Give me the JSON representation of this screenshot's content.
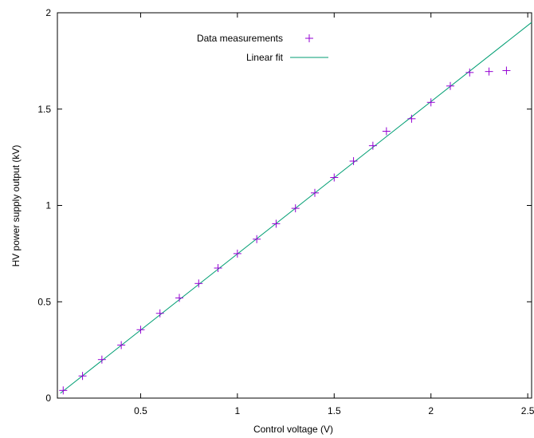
{
  "chart_data": {
    "type": "scatter",
    "title": "",
    "xlabel": "Control voltage (V)",
    "ylabel": "HV power supply output (kV)",
    "xlim": [
      0.07,
      2.52
    ],
    "ylim": [
      0,
      2
    ],
    "x_ticks": [
      {
        "value": 0.5,
        "label": "0.5"
      },
      {
        "value": 1,
        "label": "1"
      },
      {
        "value": 1.5,
        "label": "1.5"
      },
      {
        "value": 2,
        "label": "2"
      },
      {
        "value": 2.5,
        "label": "2.5"
      }
    ],
    "y_ticks": [
      {
        "value": 0,
        "label": "0"
      },
      {
        "value": 0.5,
        "label": "0.5"
      },
      {
        "value": 1,
        "label": "1"
      },
      {
        "value": 1.5,
        "label": "1.5"
      },
      {
        "value": 2,
        "label": "2"
      }
    ],
    "grid": false,
    "legend_position": "top-center",
    "series": [
      {
        "name": "Data measurements",
        "kind": "points",
        "marker": "plus",
        "color": "#9400d3",
        "x": [
          0.1,
          0.2,
          0.3,
          0.4,
          0.5,
          0.6,
          0.7,
          0.8,
          0.9,
          1.0,
          1.1,
          1.2,
          1.3,
          1.4,
          1.5,
          1.6,
          1.7,
          1.77,
          1.9,
          2.0,
          2.1,
          2.2,
          2.3,
          2.39
        ],
        "y": [
          0.04,
          0.115,
          0.2,
          0.275,
          0.355,
          0.44,
          0.52,
          0.595,
          0.675,
          0.75,
          0.825,
          0.905,
          0.985,
          1.065,
          1.145,
          1.23,
          1.31,
          1.385,
          1.45,
          1.535,
          1.62,
          1.69,
          1.695,
          1.7
        ]
      },
      {
        "name": "Linear fit",
        "kind": "line",
        "color": "#009e73",
        "x": [
          0.085,
          2.52
        ],
        "y": [
          0.025,
          1.95
        ]
      }
    ]
  }
}
